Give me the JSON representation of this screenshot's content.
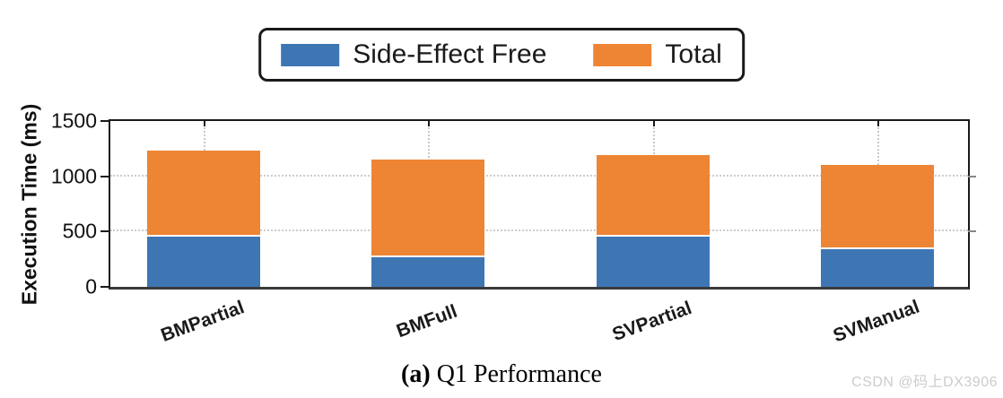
{
  "legend": {
    "items": [
      {
        "label": "Side-Effect Free",
        "color": "#3e76b4"
      },
      {
        "label": "Total",
        "color": "#ee8534"
      }
    ]
  },
  "caption": {
    "prefix": "(a)",
    "text": " Q1 Performance"
  },
  "watermark": "CSDN @码上DX3906",
  "chart_data": {
    "type": "bar",
    "stacked": true,
    "title": "",
    "xlabel": "",
    "ylabel": "Execution Time (ms)",
    "ylim": [
      0,
      1500
    ],
    "yticks": [
      "0",
      "500",
      "1000",
      "1500"
    ],
    "gridlines_y": [
      500,
      1000
    ],
    "grid_style": "dotted",
    "legend_position": "top-center",
    "categories": [
      "BMPartial",
      "BMFull",
      "SVPartial",
      "SVManual"
    ],
    "series": [
      {
        "name": "Side-Effect Free",
        "color": "#3e76b4",
        "values": [
          460,
          280,
          460,
          350
        ]
      },
      {
        "name": "Total",
        "color": "#ee8534",
        "values": [
          1200,
          1120,
          1160,
          1070
        ]
      }
    ]
  }
}
